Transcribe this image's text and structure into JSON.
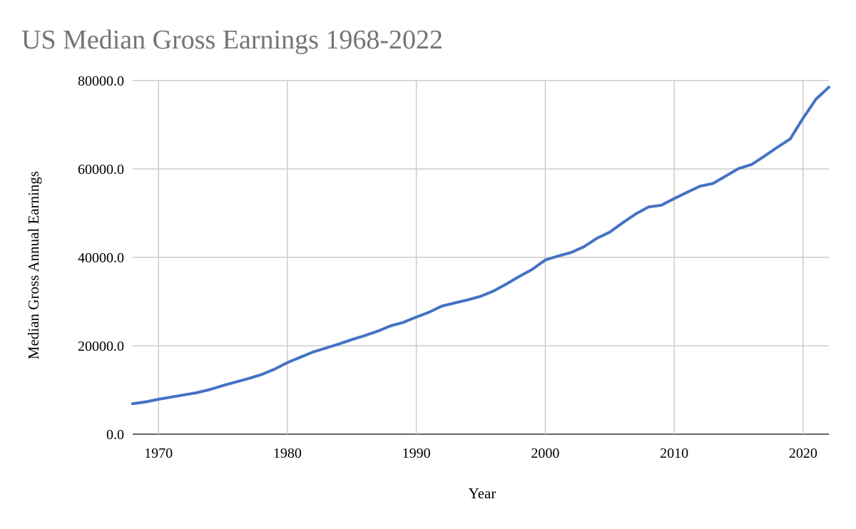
{
  "chart_data": {
    "type": "line",
    "title": "US Median Gross Earnings 1968-2022",
    "xlabel": "Year",
    "ylabel": "Median Gross Annual Earnings",
    "xlim": [
      1968,
      2022
    ],
    "ylim": [
      0,
      80000
    ],
    "x_ticks": [
      1970,
      1980,
      1990,
      2000,
      2010,
      2020
    ],
    "y_ticks": [
      0,
      20000,
      40000,
      60000,
      80000
    ],
    "y_tick_labels": [
      "0.0",
      "20000.0",
      "40000.0",
      "60000.0",
      "80000.0"
    ],
    "grid": true,
    "legend": "none",
    "line_color": "#4472c4",
    "series": [
      {
        "x": [
          1968,
          1969,
          1970,
          1971,
          1972,
          1973,
          1974,
          1975,
          1976,
          1977,
          1978,
          1979,
          1980,
          1981,
          1982,
          1983,
          1984,
          1985,
          1986,
          1987,
          1988,
          1989,
          1990,
          1991,
          1992,
          1993,
          1994,
          1995,
          1996,
          1997,
          1998,
          1999,
          2000,
          2001,
          2002,
          2003,
          2004,
          2005,
          2006,
          2007,
          2008,
          2009,
          2010,
          2011,
          2012,
          2013,
          2014,
          2015,
          2016,
          2017,
          2018,
          2019,
          2020,
          2021,
          2022
        ],
        "values": [
          6900,
          7300,
          7900,
          8400,
          8900,
          9400,
          10100,
          11000,
          11800,
          12600,
          13500,
          14700,
          16200,
          17400,
          18600,
          19500,
          20400,
          21400,
          22300,
          23300,
          24500,
          25300,
          26500,
          27600,
          29000,
          29700,
          30400,
          31200,
          32400,
          34000,
          35700,
          37300,
          39400,
          40300,
          41100,
          42400,
          44300,
          45700,
          47800,
          49800,
          51400,
          51800,
          53300,
          54700,
          56100,
          56700,
          58400,
          60100,
          61000,
          62900,
          64900,
          66800,
          71500,
          75800,
          78500
        ]
      }
    ]
  }
}
